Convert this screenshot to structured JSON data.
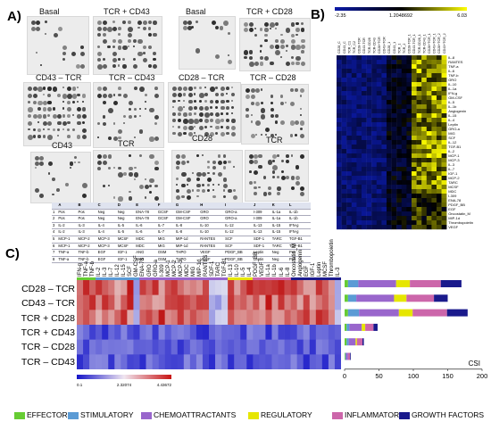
{
  "panelA": {
    "letter": "A)",
    "blots": [
      {
        "label": "Basal"
      },
      {
        "label": "TCR + CD43"
      },
      {
        "label": "Basal"
      },
      {
        "label": "TCR + CD28"
      },
      {
        "label": "CD43 – TCR"
      },
      {
        "label": "TCR – CD43"
      },
      {
        "label": "CD28 – TCR"
      },
      {
        "label": "TCR – CD28"
      },
      {
        "label": "CD43"
      },
      {
        "label": "TCR"
      },
      {
        "label": "CD28"
      },
      {
        "label": "TCR"
      }
    ],
    "array_table": {
      "header": [
        "",
        "A",
        "B",
        "C",
        "D",
        "E",
        "F",
        "G",
        "H",
        "I",
        "J",
        "K",
        "L"
      ],
      "rows": [
        [
          "1",
          "Pos",
          "Pos",
          "Neg",
          "Neg",
          "ENA-78",
          "GCSF",
          "GM-CSF",
          "GRO",
          "GRO-a",
          "I-309",
          "IL-1a",
          "IL-1b"
        ],
        [
          "2",
          "Pos",
          "Pos",
          "Neg",
          "Neg",
          "ENA-78",
          "GCSF",
          "GM-CSF",
          "GRO",
          "GRO-a",
          "I-309",
          "IL-1a",
          "IL-1b"
        ],
        [
          "3",
          "IL-2",
          "IL-3",
          "IL-4",
          "IL-5",
          "IL-6",
          "IL-7",
          "IL-8",
          "IL-10",
          "IL-12",
          "IL-13",
          "IL-15",
          "IFN-g"
        ],
        [
          "4",
          "IL-2",
          "IL-3",
          "IL-4",
          "IL-5",
          "IL-6",
          "IL-7",
          "IL-8",
          "IL-10",
          "IL-12",
          "IL-13",
          "IL-15",
          "IFN-g"
        ],
        [
          "5",
          "MCP-1",
          "MCP-2",
          "MCP-3",
          "MCSF",
          "MDC",
          "MIG",
          "MIP-1d",
          "RANTES",
          "SCF",
          "SDF-1",
          "TARC",
          "TGF-B1"
        ],
        [
          "6",
          "MCP-1",
          "MCP-2",
          "MCP-3",
          "MCSF",
          "MDC",
          "MIG",
          "MIP-1d",
          "RANTES",
          "SCF",
          "SDF-1",
          "TARC",
          "TGF-B1"
        ],
        [
          "7",
          "TNF-a",
          "TNF-b",
          "EGF",
          "IGF-1",
          "ANG",
          "OSM",
          "THPO",
          "VEGF",
          "PDGF_BB",
          "Leptin",
          "Neg",
          "Pos"
        ],
        [
          "8",
          "TNF-a",
          "TNF-b",
          "EGF",
          "IGF-1",
          "ANG",
          "OSM",
          "THPO",
          "VEGF",
          "PDGF_BB",
          "Leptin",
          "Neg",
          "Pos"
        ]
      ]
    }
  },
  "panelB": {
    "letter": "B)",
    "scale_min": "-2.35",
    "scale_mid": "1.2048692",
    "scale_max": "6.03",
    "colors": {
      "low": "#0b1aa8",
      "mid": "#000000",
      "high": "#ffff00"
    },
    "row_labels": [
      "IL-8",
      "RANTES",
      "TNF-a",
      "IL-6",
      "TNF-b",
      "GRO",
      "IL-10",
      "IL-1a",
      "IFN-g",
      "GM-CSF",
      "IL-5",
      "IL-1b",
      "Angiogenin",
      "IL-15",
      "IL-4",
      "Leptin",
      "GRO-a",
      "MIG",
      "SCF",
      "IL-12",
      "TGF-B1",
      "IL-2",
      "MCP-1",
      "MCP-3",
      "IL-3",
      "IL-7",
      "IGF-1",
      "MCP-2",
      "TARC",
      "MCSF",
      "MDC",
      "I-309",
      "ENA-78",
      "PDGF_BB",
      "EGF",
      "Oncostatin_M",
      "MIP-1d",
      "Thrombopoietin",
      "VEGF"
    ],
    "col_labels": [
      "CD28_C",
      "CD43_C",
      "TCR_C1",
      "TCR_C2",
      "CD28-TCR",
      "CD43-TCR",
      "TCR-CD28",
      "TCR-CD43",
      "CD28+TCR",
      "CD43+TCR",
      "CD28_1",
      "CD43_1",
      "TCR_1",
      "TCR_2",
      "CD28-TCR_1",
      "CD43-TCR_1",
      "TCR-CD28_1",
      "TCR-CD43_1",
      "CD28+TCR_1",
      "CD43+TCR_1",
      "CD28+TCR_2",
      "CD43+TCR_2"
    ]
  },
  "panelC": {
    "letter": "C)",
    "columns": [
      "IFN-g",
      "TNF-a",
      "TNF-b",
      "IL-2",
      "IL-3",
      "IL-7",
      "IL-12",
      "IL-15",
      "SCF",
      "GM-CSF",
      "ENA-78",
      "GRO",
      "GRO-a",
      "I-309",
      "MCP-1",
      "MCP-2",
      "MCP-3",
      "MDC",
      "MIG",
      "MIP-1d",
      "RANTES",
      "SDF-1",
      "TARC",
      "TGF-B1",
      "IL-13",
      "IL-10",
      "IL-5",
      "IL-4",
      "PDGF_BB",
      "VEGF",
      "IL-1a",
      "IL-1b",
      "IL-6",
      "IL-8",
      "Oncostatin_M",
      "Angiogenin",
      "EGF",
      "IGF-1",
      "Leptin",
      "MCSF",
      "Thrombopoietin",
      "IL-3"
    ],
    "rows": [
      "CD28 – TCR",
      "CD43 – TCR",
      "TCR + CD28",
      "TCR + CD43",
      "TCR – CD28",
      "TCR – CD43"
    ],
    "scale_labels": [
      "0.1",
      "2.32074",
      "4.43672"
    ],
    "bar_axis_ticks": [
      "0",
      "50",
      "100",
      "150",
      "200"
    ],
    "bar_axis_label": "CSI",
    "legend": [
      {
        "label": "EFFECTOR",
        "color": "#66cc33"
      },
      {
        "label": "STIMULATORY",
        "color": "#5b9bd5"
      },
      {
        "label": "CHEMOATTRACTANTS",
        "color": "#9966cc"
      },
      {
        "label": "REGULATORY",
        "color": "#e6e600"
      },
      {
        "label": "INFLAMMATORY",
        "color": "#cc66aa"
      },
      {
        "label": "GROWTH FACTORS",
        "color": "#1a1a8c"
      }
    ]
  },
  "chart_data": {
    "type": "bar",
    "categories": [
      "CD28 – TCR",
      "CD43 – TCR",
      "TCR + CD28",
      "TCR + CD43",
      "TCR – CD28",
      "TCR – CD43"
    ],
    "xlim": [
      0,
      200
    ],
    "xlabel": "CSI",
    "series": [
      {
        "name": "EFFECTOR",
        "values": [
          5,
          5,
          5,
          3,
          3,
          1
        ]
      },
      {
        "name": "STIMULATORY",
        "values": [
          15,
          12,
          16,
          4,
          3,
          1
        ]
      },
      {
        "name": "CHEMOATTRACTANTS",
        "values": [
          55,
          55,
          58,
          18,
          10,
          3
        ]
      },
      {
        "name": "REGULATORY",
        "values": [
          20,
          18,
          20,
          5,
          2,
          0
        ]
      },
      {
        "name": "INFLAMMATORY",
        "values": [
          45,
          40,
          50,
          12,
          8,
          3
        ]
      },
      {
        "name": "GROWTH FACTORS",
        "values": [
          30,
          20,
          30,
          6,
          2,
          1
        ]
      }
    ]
  }
}
